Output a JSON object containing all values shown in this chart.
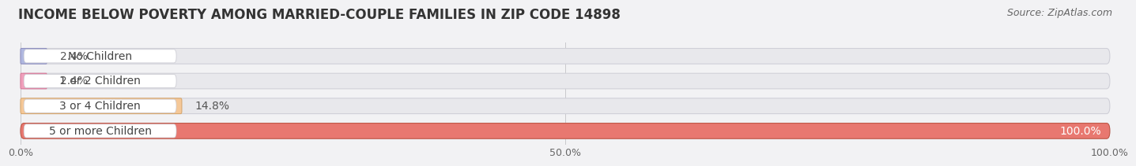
{
  "title": "INCOME BELOW POVERTY AMONG MARRIED-COUPLE FAMILIES IN ZIP CODE 14898",
  "source": "Source: ZipAtlas.com",
  "categories": [
    "No Children",
    "1 or 2 Children",
    "3 or 4 Children",
    "5 or more Children"
  ],
  "values": [
    2.4,
    2.4,
    14.8,
    100.0
  ],
  "bar_colors": [
    "#b0b8e0",
    "#f0a0bc",
    "#f5c898",
    "#e87870"
  ],
  "bar_edge_colors": [
    "#9090c0",
    "#d87898",
    "#d8a870",
    "#c05848"
  ],
  "bg_bar_color": "#e8e8ec",
  "bg_bar_edge": "#d0d0d8",
  "label_pill_color": "#ffffff",
  "label_pill_edge": "#cccccc",
  "xlim": [
    0,
    100
  ],
  "xticks": [
    0.0,
    50.0,
    100.0
  ],
  "xticklabels": [
    "0.0%",
    "50.0%",
    "100.0%"
  ],
  "bar_height": 0.62,
  "background_color": "#f2f2f4",
  "title_fontsize": 12,
  "source_fontsize": 9,
  "label_fontsize": 10,
  "category_fontsize": 10,
  "value_label_outside_color": "#555555",
  "value_label_inside_color": "#ffffff"
}
